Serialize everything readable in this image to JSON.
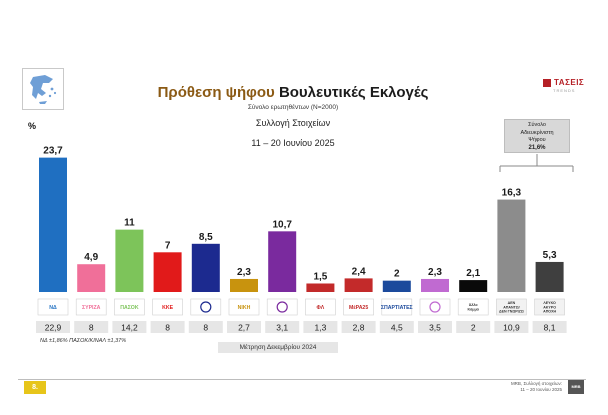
{
  "header": {
    "title_part1": "Πρόθεση ψήφου",
    "title_part2": "Βουλευτικές Εκλογές",
    "subtitle": "Σύνολο ερωτηθέντων (Ν=2000)",
    "collection_label": "Συλλογή Στοιχείων",
    "dates": "11 – 20 Ιουνίου 2025",
    "logo_text": "ΤΑΣΕΙΣ",
    "logo_sub": "TRENDS",
    "colors": {
      "title_accent": "#8b5a14",
      "logo": "#b52026"
    }
  },
  "undecided": {
    "line1": "Σύνολο",
    "line2": "Αδιευκρίνιστη",
    "line3": "Ψήφου",
    "value": "21,6%"
  },
  "chart_data": {
    "type": "bar",
    "ylabel": "%",
    "ylim": [
      0,
      25
    ],
    "grid": false,
    "categories": [
      "ΝΔ",
      "ΣΥΡΙΖΑ",
      "ΠΑΣΟΚ",
      "ΚΚΕ",
      "Ελληνική Λύση",
      "Νίκη",
      "Πλεύση Ελευθερίας",
      "Φωνή Λογικής",
      "ΜέΡΑ25",
      "Σπαρτιάτες",
      "Νέα Αριστερά",
      "Άλλο Κόμμα",
      "Δεν Απαντώ / Δεν Γνωρίζω",
      "Λευκό / Άκυρο / Αποχή"
    ],
    "logo_texts": [
      "ΝΔ",
      "ΣΥΡΙΖΑ",
      "ΠΑΣΟΚ",
      "ΚΚΕ",
      "",
      "ΝΙΚΗ",
      "",
      "ΦΛ",
      "ΜέΡΑ25",
      "ΣΠΑΡΤΙΑΤΕΣ",
      "",
      "Άλλο\nΚόμμα",
      "ΔΕΝ\nΑΠΑΝΤΩ/\nΔΕΝ ΓΝΩΡΙΖΩ",
      "ΛΕΥΚΟ\nΑΚΥΡΟ\nΑΠΟΧΗ"
    ],
    "values": [
      23.7,
      4.9,
      11,
      7,
      8.5,
      2.3,
      10.7,
      1.5,
      2.4,
      2,
      2.3,
      2.1,
      16.3,
      5.3
    ],
    "value_labels": [
      "23,7",
      "4,9",
      "11",
      "7",
      "8,5",
      "2,3",
      "10,7",
      "1,5",
      "2,4",
      "2",
      "2,3",
      "2,1",
      "16,3",
      "5,3"
    ],
    "previous_label": "Μέτρηση Δεκεμβρίου 2024",
    "previous_values": [
      "22,9",
      "8",
      "14,2",
      "8",
      "8",
      "2,7",
      "3,1",
      "1,3",
      "2,8",
      "4,5",
      "3,5",
      "2",
      "10,9",
      "8,1"
    ],
    "colors": [
      "#1f6fc1",
      "#f06f99",
      "#7dc45a",
      "#e11a1a",
      "#1c2a8f",
      "#c8930e",
      "#7a2a9e",
      "#c22a2a",
      "#c32a2a",
      "#1c4a9c",
      "#c06ad1",
      "#0a0a0a",
      "#8c8c8c",
      "#3f3f3f"
    ]
  },
  "footnote": "ΝΔ ±1,86% ΠΑΣΟΚ/ΚΙΝΑΛ ±1,37%",
  "footer": {
    "page_number": "8.",
    "line1": "MRB, Συλλογή στοιχείων:",
    "line2": "11 – 20 Ιουνίου 2025",
    "logo": "MRB"
  }
}
